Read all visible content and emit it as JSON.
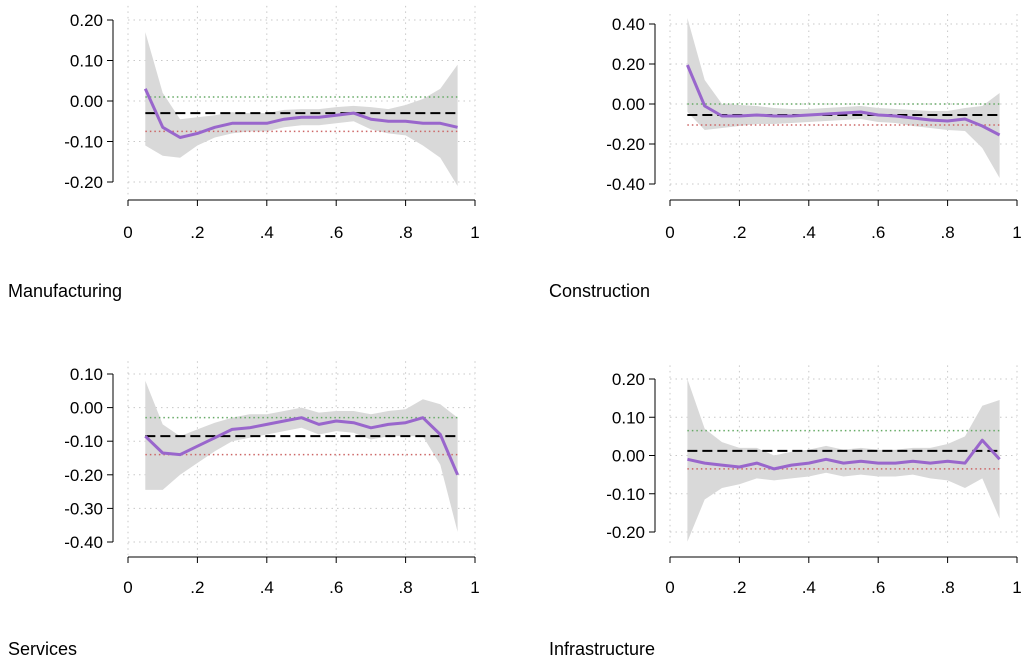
{
  "chart_data": [
    {
      "type": "line",
      "title": "Manufacturing",
      "xlim": [
        0,
        1
      ],
      "ylim": [
        -0.22,
        0.22
      ],
      "x_ticks": [
        0,
        0.2,
        0.4,
        0.6,
        0.8,
        1
      ],
      "x_tick_labels": [
        "0",
        ".2",
        ".4",
        ".6",
        ".8",
        "1"
      ],
      "y_ticks": [
        0.2,
        0.1,
        0.0,
        -0.1,
        -0.2
      ],
      "y_tick_labels": [
        "0.20",
        "0.10",
        "0.00",
        "-0.10",
        "-0.20"
      ],
      "grid": true,
      "x": [
        0.05,
        0.1,
        0.15,
        0.2,
        0.25,
        0.3,
        0.35,
        0.4,
        0.45,
        0.5,
        0.55,
        0.6,
        0.65,
        0.7,
        0.75,
        0.8,
        0.85,
        0.9,
        0.95
      ],
      "estimate": [
        0.03,
        -0.065,
        -0.09,
        -0.08,
        -0.065,
        -0.055,
        -0.055,
        -0.055,
        -0.045,
        -0.04,
        -0.04,
        -0.035,
        -0.03,
        -0.045,
        -0.05,
        -0.05,
        -0.055,
        -0.055,
        -0.065
      ],
      "ci_upper": [
        0.17,
        0.02,
        -0.045,
        -0.04,
        -0.035,
        -0.028,
        -0.03,
        -0.03,
        -0.022,
        -0.02,
        -0.02,
        -0.015,
        -0.012,
        -0.015,
        -0.02,
        -0.01,
        0.005,
        0.03,
        0.09
      ],
      "ci_lower": [
        -0.11,
        -0.135,
        -0.14,
        -0.11,
        -0.09,
        -0.08,
        -0.075,
        -0.075,
        -0.065,
        -0.06,
        -0.06,
        -0.055,
        -0.05,
        -0.07,
        -0.08,
        -0.085,
        -0.11,
        -0.14,
        -0.21
      ],
      "reference_mean": -0.03,
      "reference_upper": 0.01,
      "reference_lower": -0.075,
      "colors": {
        "estimate": "#9966cc",
        "ci_band": "#d9d9d9",
        "mean_line": "#000000",
        "upper_dotted": "#66aa66",
        "lower_dotted": "#cc6666",
        "grid": "#c8c8c8"
      }
    },
    {
      "type": "line",
      "title": "Construction",
      "xlim": [
        0,
        1
      ],
      "ylim": [
        -0.42,
        0.42
      ],
      "x_ticks": [
        0,
        0.2,
        0.4,
        0.6,
        0.8,
        1
      ],
      "x_tick_labels": [
        "0",
        ".2",
        ".4",
        ".6",
        ".8",
        "1"
      ],
      "y_ticks": [
        0.4,
        0.2,
        0.0,
        -0.2,
        -0.4
      ],
      "y_tick_labels": [
        "0.40",
        "0.20",
        "0.00",
        "-0.20",
        "-0.40"
      ],
      "grid": true,
      "x": [
        0.05,
        0.1,
        0.15,
        0.2,
        0.25,
        0.3,
        0.35,
        0.4,
        0.45,
        0.5,
        0.55,
        0.6,
        0.65,
        0.7,
        0.75,
        0.8,
        0.85,
        0.9,
        0.95
      ],
      "estimate": [
        0.195,
        -0.01,
        -0.06,
        -0.06,
        -0.055,
        -0.06,
        -0.06,
        -0.055,
        -0.05,
        -0.045,
        -0.04,
        -0.055,
        -0.06,
        -0.07,
        -0.08,
        -0.085,
        -0.075,
        -0.11,
        -0.155
      ],
      "ci_upper": [
        0.43,
        0.12,
        0.0,
        -0.005,
        -0.01,
        -0.02,
        -0.025,
        -0.025,
        -0.02,
        -0.015,
        -0.01,
        -0.02,
        -0.025,
        -0.03,
        -0.035,
        -0.035,
        -0.02,
        -0.01,
        0.055
      ],
      "ci_lower": [
        -0.04,
        -0.13,
        -0.12,
        -0.11,
        -0.1,
        -0.1,
        -0.095,
        -0.09,
        -0.085,
        -0.08,
        -0.075,
        -0.09,
        -0.095,
        -0.11,
        -0.12,
        -0.13,
        -0.135,
        -0.22,
        -0.37
      ],
      "reference_mean": -0.055,
      "reference_upper": 0.0,
      "reference_lower": -0.105,
      "colors": {
        "estimate": "#9966cc",
        "ci_band": "#d9d9d9",
        "mean_line": "#000000",
        "upper_dotted": "#66aa66",
        "lower_dotted": "#cc6666",
        "grid": "#c8c8c8"
      }
    },
    {
      "type": "line",
      "title": "Services",
      "xlim": [
        0,
        1
      ],
      "ylim": [
        -0.42,
        0.12
      ],
      "x_ticks": [
        0,
        0.2,
        0.4,
        0.6,
        0.8,
        1
      ],
      "x_tick_labels": [
        "0",
        ".2",
        ".4",
        ".6",
        ".8",
        "1"
      ],
      "y_ticks": [
        0.1,
        0.0,
        -0.1,
        -0.2,
        -0.3,
        -0.4
      ],
      "y_tick_labels": [
        "0.10",
        "0.00",
        "-0.10",
        "-0.20",
        "-0.30",
        "-0.40"
      ],
      "grid": true,
      "x": [
        0.05,
        0.1,
        0.15,
        0.2,
        0.25,
        0.3,
        0.35,
        0.4,
        0.45,
        0.5,
        0.55,
        0.6,
        0.65,
        0.7,
        0.75,
        0.8,
        0.85,
        0.9,
        0.95
      ],
      "estimate": [
        -0.085,
        -0.135,
        -0.14,
        -0.115,
        -0.09,
        -0.065,
        -0.06,
        -0.05,
        -0.04,
        -0.03,
        -0.05,
        -0.04,
        -0.045,
        -0.06,
        -0.05,
        -0.045,
        -0.03,
        -0.08,
        -0.2
      ],
      "ci_upper": [
        0.08,
        -0.05,
        -0.085,
        -0.065,
        -0.045,
        -0.03,
        -0.02,
        -0.02,
        -0.01,
        0.0,
        -0.015,
        -0.01,
        -0.01,
        -0.02,
        -0.01,
        -0.005,
        0.025,
        0.01,
        -0.03
      ],
      "ci_lower": [
        -0.245,
        -0.245,
        -0.2,
        -0.165,
        -0.13,
        -0.1,
        -0.09,
        -0.08,
        -0.07,
        -0.06,
        -0.08,
        -0.07,
        -0.075,
        -0.095,
        -0.085,
        -0.085,
        -0.085,
        -0.17,
        -0.37
      ],
      "reference_mean": -0.085,
      "reference_upper": -0.03,
      "reference_lower": -0.14,
      "colors": {
        "estimate": "#9966cc",
        "ci_band": "#d9d9d9",
        "mean_line": "#000000",
        "upper_dotted": "#66aa66",
        "lower_dotted": "#cc6666",
        "grid": "#c8c8c8"
      }
    },
    {
      "type": "line",
      "title": "Infrastructure",
      "xlim": [
        0,
        1
      ],
      "ylim": [
        -0.22,
        0.22
      ],
      "x_ticks": [
        0,
        0.2,
        0.4,
        0.6,
        0.8,
        1
      ],
      "x_tick_labels": [
        "0",
        ".2",
        ".4",
        ".6",
        ".8",
        "1"
      ],
      "y_ticks": [
        0.2,
        0.1,
        0.0,
        -0.1,
        -0.2
      ],
      "y_tick_labels": [
        "0.20",
        "0.10",
        "0.00",
        "-0.10",
        "-0.20"
      ],
      "grid": true,
      "x": [
        0.05,
        0.1,
        0.15,
        0.2,
        0.25,
        0.3,
        0.35,
        0.4,
        0.45,
        0.5,
        0.55,
        0.6,
        0.65,
        0.7,
        0.75,
        0.8,
        0.85,
        0.9,
        0.95
      ],
      "estimate": [
        -0.01,
        -0.02,
        -0.025,
        -0.03,
        -0.02,
        -0.035,
        -0.025,
        -0.02,
        -0.01,
        -0.02,
        -0.015,
        -0.02,
        -0.02,
        -0.015,
        -0.02,
        -0.015,
        -0.02,
        0.04,
        -0.01
      ],
      "ci_upper": [
        0.2,
        0.07,
        0.035,
        0.02,
        0.02,
        0.0,
        0.01,
        0.015,
        0.025,
        0.015,
        0.02,
        0.015,
        0.015,
        0.02,
        0.02,
        0.03,
        0.05,
        0.13,
        0.145
      ],
      "ci_lower": [
        -0.225,
        -0.115,
        -0.085,
        -0.075,
        -0.06,
        -0.065,
        -0.06,
        -0.055,
        -0.045,
        -0.055,
        -0.05,
        -0.055,
        -0.055,
        -0.05,
        -0.06,
        -0.065,
        -0.085,
        -0.06,
        -0.165
      ],
      "reference_mean": 0.012,
      "reference_upper": 0.065,
      "reference_lower": -0.035,
      "colors": {
        "estimate": "#9966cc",
        "ci_band": "#d9d9d9",
        "mean_line": "#000000",
        "upper_dotted": "#66aa66",
        "lower_dotted": "#cc6666",
        "grid": "#c8c8c8"
      }
    }
  ]
}
